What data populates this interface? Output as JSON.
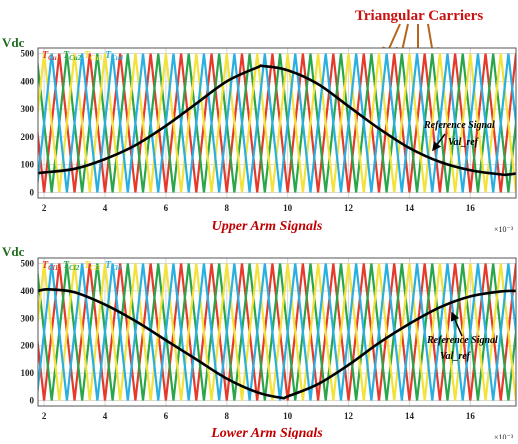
{
  "annotations": {
    "carriers_title": "Triangular Carriers",
    "vdc_label": "Vdc",
    "reference_signal": "Reference Signal",
    "reference_name": "Val_ref"
  },
  "colors": {
    "carrier1": "#e53a2a",
    "carrier2": "#2aa64a",
    "carrier3": "#f2e23a",
    "carrier4": "#2ab0e0",
    "reference": "#000000",
    "grid": "#d8d8d8",
    "title": "#c00000"
  },
  "chart_data": [
    {
      "type": "line",
      "xlabel": "Upper Arm Signals",
      "x_multiplier": "×10⁻³",
      "ylabel": "Vdc",
      "xlim": [
        1.8,
        17.5
      ],
      "ylim": [
        -20,
        520
      ],
      "xticks": [
        2,
        4,
        6,
        8,
        10,
        12,
        14,
        16
      ],
      "yticks": [
        0,
        100,
        200,
        300,
        400,
        500
      ],
      "grid": true,
      "legend": [
        "T_Cu1",
        "T_Cu2",
        "T_Cu3",
        "T_Cu4"
      ],
      "legend_placement": "top-left",
      "carriers": {
        "period_ms": 1.0,
        "min": 0,
        "max": 500,
        "phase_shifts": [
          0,
          0.25,
          0.5,
          0.75
        ]
      },
      "series": [
        {
          "name": "Val_ref",
          "x": [
            1.8,
            2,
            3,
            4,
            5,
            6,
            7,
            8,
            9,
            9.2,
            10,
            11,
            12,
            13,
            14,
            15,
            16,
            17,
            17.2,
            17.5
          ],
          "y": [
            70,
            72,
            85,
            120,
            170,
            240,
            320,
            400,
            450,
            455,
            440,
            390,
            310,
            230,
            160,
            110,
            80,
            65,
            64,
            68
          ]
        }
      ]
    },
    {
      "type": "line",
      "xlabel": "Lower Arm Signals",
      "x_multiplier": "×10⁻³",
      "ylabel": "Vdc",
      "xlim": [
        1.8,
        17.5
      ],
      "ylim": [
        -20,
        520
      ],
      "xticks": [
        2,
        4,
        6,
        8,
        10,
        12,
        14,
        16
      ],
      "yticks": [
        0,
        100,
        200,
        300,
        400,
        500
      ],
      "grid": true,
      "legend": [
        "T_Cl1",
        "T_Cl2",
        "T_Cl3",
        "T_Cl4"
      ],
      "legend_placement": "top-left",
      "carriers": {
        "period_ms": 1.0,
        "min": 0,
        "max": 500,
        "phase_shifts": [
          0,
          0.25,
          0.5,
          0.75
        ]
      },
      "series": [
        {
          "name": "Val_ref",
          "x": [
            1.8,
            2,
            2.3,
            3,
            4,
            5,
            6,
            7,
            8,
            9,
            9.8,
            10,
            11,
            12,
            13,
            14,
            15,
            16,
            17,
            17.5
          ],
          "y": [
            400,
            405,
            405,
            395,
            350,
            290,
            220,
            150,
            80,
            30,
            10,
            15,
            60,
            130,
            210,
            280,
            340,
            380,
            398,
            400
          ]
        }
      ]
    }
  ]
}
